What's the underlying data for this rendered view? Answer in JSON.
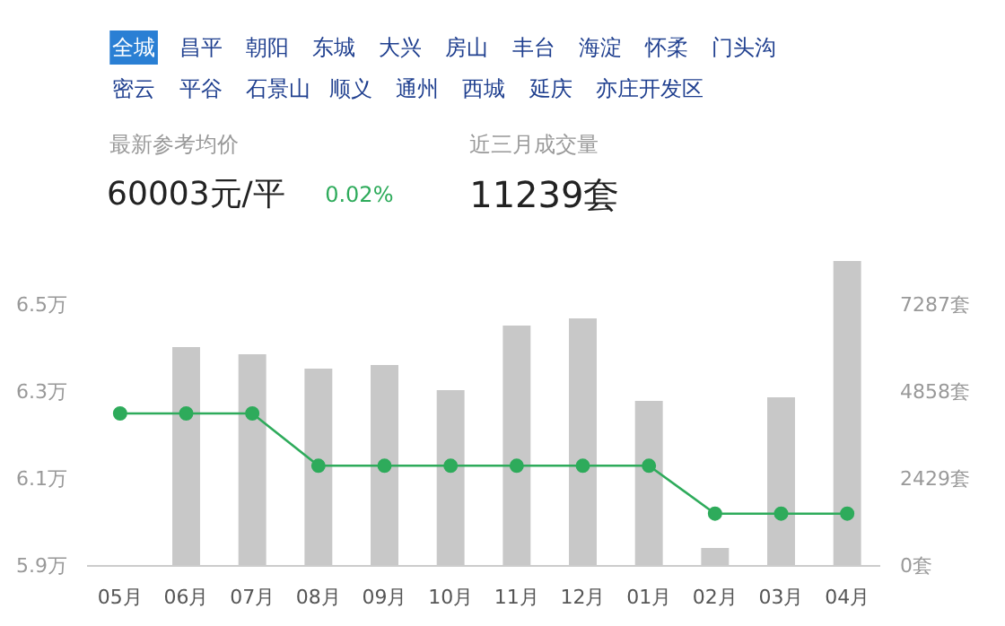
{
  "chart_data": [
    {
      "type": "other",
      "annotations": [
        "全城",
        "昌平",
        "朝阳",
        "东城",
        "大兴",
        "房山",
        "丰台",
        "海淀",
        "怀柔",
        "门头沟",
        "密云",
        "平谷",
        "石景山",
        "顺义",
        "通州",
        "西城",
        "延庆",
        "亦庄开发区",
        "最新参考均价",
        "60003元/平",
        "0.02%",
        "近三月成交量",
        "11239套"
      ]
    },
    {
      "type": "bar",
      "categories": [
        "05月",
        "06月",
        "07月",
        "08月",
        "09月",
        "10月",
        "11月",
        "12月",
        "01月",
        "02月",
        "03月",
        "04月"
      ],
      "series": [
        {
          "type": "bar",
          "axis": "y2",
          "color": "#c8c8c8",
          "values": [
            0,
            6100,
            5900,
            5500,
            5600,
            4900,
            6700,
            6900,
            4600,
            500,
            4700,
            8500
          ]
        },
        {
          "type": "line",
          "color": "#2eab5b",
          "values": [
            6.25,
            6.25,
            6.25,
            6.13,
            6.13,
            6.13,
            6.13,
            6.13,
            6.13,
            6.02,
            6.02,
            6.02
          ]
        }
      ],
      "ylim": [
        5.9,
        6.6
      ],
      "yticks": [
        {
          "value": 5.9,
          "label": "5.9万"
        },
        {
          "value": 6.1,
          "label": "6.1万"
        },
        {
          "value": 6.3,
          "label": "6.3万"
        },
        {
          "value": 6.5,
          "label": "6.5万"
        }
      ],
      "y2lim": [
        0,
        8500
      ],
      "y2ticks": [
        {
          "value": 0,
          "label": "0套"
        },
        {
          "value": 2429,
          "label": "2429套"
        },
        {
          "value": 4858,
          "label": "4858套"
        },
        {
          "value": 7287,
          "label": "7287套"
        }
      ],
      "marker": "circle",
      "grid": false
    }
  ]
}
